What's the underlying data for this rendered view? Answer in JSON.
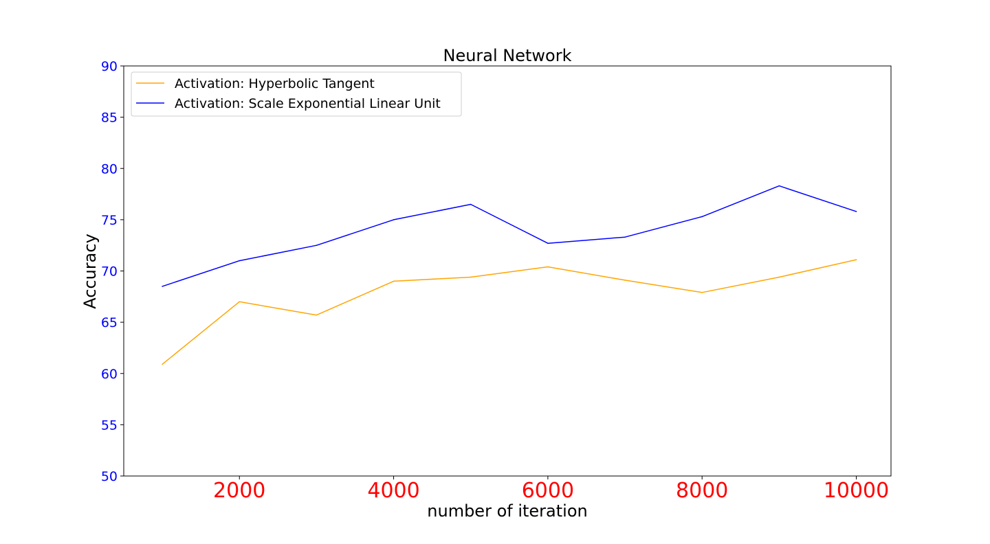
{
  "chart_data": {
    "type": "line",
    "title": "Neural Network",
    "xlabel": "number of iteration",
    "ylabel": "Accuracy",
    "x": [
      1000,
      2000,
      3000,
      4000,
      5000,
      6000,
      7000,
      8000,
      9000,
      10000
    ],
    "xlim": [
      500,
      10450
    ],
    "ylim": [
      50,
      90
    ],
    "xticks": [
      2000,
      4000,
      6000,
      8000,
      10000
    ],
    "yticks": [
      50,
      55,
      60,
      65,
      70,
      75,
      80,
      85,
      90
    ],
    "xtick_color": "#ff0000",
    "ytick_color": "#0000ff",
    "grid": false,
    "legend_position": "top-left",
    "series": [
      {
        "name": "Activation: Hyperbolic Tangent",
        "color": "#ffa500",
        "values": [
          60.9,
          67.0,
          65.7,
          69.0,
          69.4,
          70.4,
          69.1,
          67.9,
          69.4,
          71.1
        ]
      },
      {
        "name": "Activation: Scale Exponential Linear Unit",
        "color": "#0000ff",
        "values": [
          68.5,
          71.0,
          72.5,
          75.0,
          76.5,
          72.7,
          73.3,
          75.3,
          78.3,
          75.8
        ]
      }
    ]
  }
}
